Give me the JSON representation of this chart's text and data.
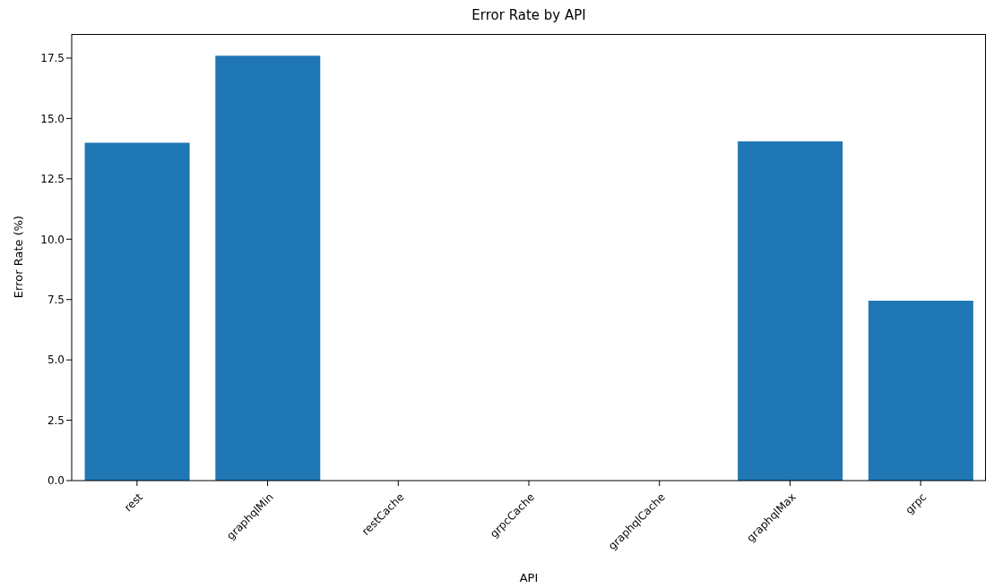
{
  "chart_data": {
    "type": "bar",
    "title": "Error Rate by API",
    "xlabel": "API",
    "ylabel": "Error Rate (%)",
    "categories": [
      "rest",
      "graphqlMin",
      "restCache",
      "grpcCache",
      "graphqlCache",
      "graphqlMax",
      "grpc"
    ],
    "values": [
      14.0,
      17.6,
      0,
      0,
      0,
      14.05,
      7.45
    ],
    "color": "#1f77b4",
    "ylim": [
      0,
      18.5
    ],
    "yticks": [
      {
        "value": 0,
        "label": "0.0"
      },
      2.5,
      {
        "value": 5,
        "label": "5.0"
      },
      7.5,
      {
        "value": 10,
        "label": "10.0"
      },
      12.5,
      {
        "value": 15,
        "label": "15.0"
      },
      17.5
    ],
    "grid": false,
    "legend": false
  }
}
